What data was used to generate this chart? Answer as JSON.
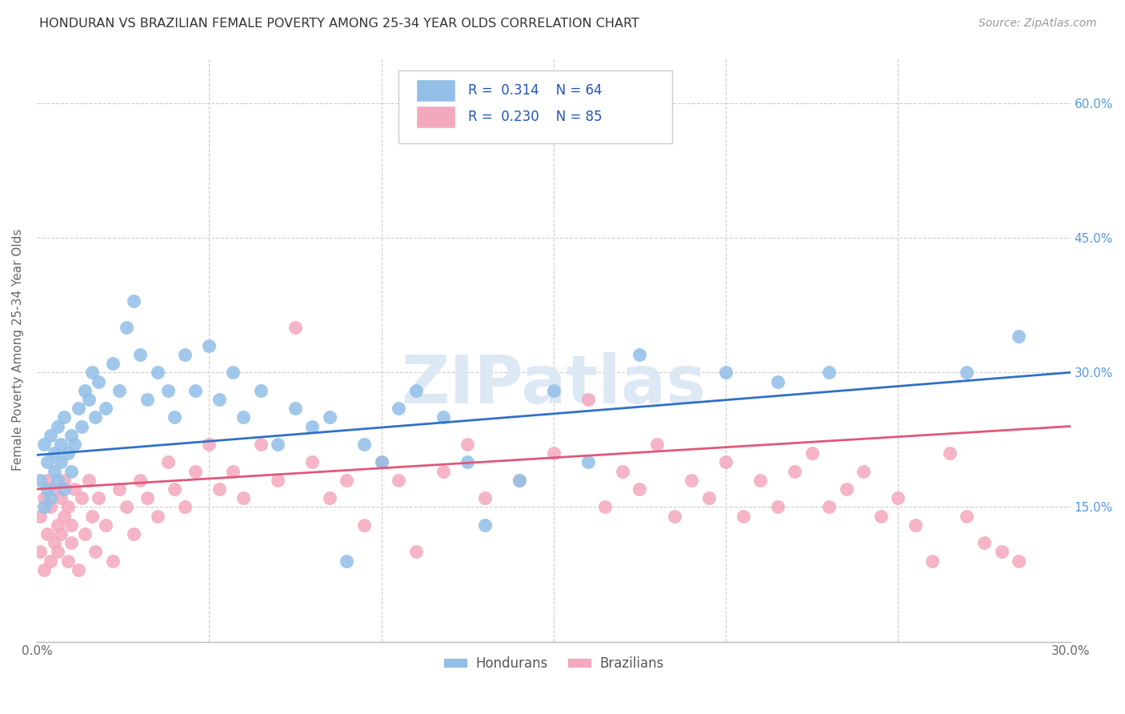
{
  "title": "HONDURAN VS BRAZILIAN FEMALE POVERTY AMONG 25-34 YEAR OLDS CORRELATION CHART",
  "source": "Source: ZipAtlas.com",
  "ylabel": "Female Poverty Among 25-34 Year Olds",
  "xlim": [
    0.0,
    0.3
  ],
  "ylim": [
    0.0,
    0.65
  ],
  "honduran_color": "#91bfe8",
  "brazilian_color": "#f4a8be",
  "honduran_line_color": "#3070c8",
  "brazilian_line_color": "#e05878",
  "r_honduran": 0.314,
  "n_honduran": 64,
  "r_brazilian": 0.23,
  "n_brazilian": 85,
  "legend_text_color": "#2255bb",
  "watermark": "ZIPatlas",
  "background_color": "#ffffff",
  "grid_color": "#cccccc",
  "right_tick_color": "#5599dd",
  "hondurans_x": [
    0.001,
    0.002,
    0.002,
    0.003,
    0.003,
    0.004,
    0.004,
    0.005,
    0.005,
    0.006,
    0.006,
    0.007,
    0.007,
    0.008,
    0.008,
    0.009,
    0.01,
    0.01,
    0.011,
    0.012,
    0.013,
    0.014,
    0.015,
    0.016,
    0.017,
    0.018,
    0.02,
    0.022,
    0.024,
    0.026,
    0.028,
    0.03,
    0.032,
    0.035,
    0.038,
    0.04,
    0.043,
    0.046,
    0.05,
    0.053,
    0.057,
    0.06,
    0.065,
    0.07,
    0.075,
    0.08,
    0.085,
    0.09,
    0.095,
    0.1,
    0.105,
    0.11,
    0.118,
    0.125,
    0.13,
    0.14,
    0.15,
    0.16,
    0.175,
    0.2,
    0.215,
    0.23,
    0.27,
    0.285
  ],
  "hondurans_y": [
    0.18,
    0.22,
    0.15,
    0.2,
    0.17,
    0.23,
    0.16,
    0.21,
    0.19,
    0.24,
    0.18,
    0.22,
    0.2,
    0.25,
    0.17,
    0.21,
    0.19,
    0.23,
    0.22,
    0.26,
    0.24,
    0.28,
    0.27,
    0.3,
    0.25,
    0.29,
    0.26,
    0.31,
    0.28,
    0.35,
    0.38,
    0.32,
    0.27,
    0.3,
    0.28,
    0.25,
    0.32,
    0.28,
    0.33,
    0.27,
    0.3,
    0.25,
    0.28,
    0.22,
    0.26,
    0.24,
    0.25,
    0.09,
    0.22,
    0.2,
    0.26,
    0.28,
    0.25,
    0.2,
    0.13,
    0.18,
    0.28,
    0.2,
    0.32,
    0.3,
    0.29,
    0.3,
    0.3,
    0.34
  ],
  "brazilians_x": [
    0.001,
    0.001,
    0.002,
    0.002,
    0.003,
    0.003,
    0.004,
    0.004,
    0.005,
    0.005,
    0.006,
    0.006,
    0.007,
    0.007,
    0.008,
    0.008,
    0.009,
    0.009,
    0.01,
    0.01,
    0.011,
    0.012,
    0.013,
    0.014,
    0.015,
    0.016,
    0.017,
    0.018,
    0.02,
    0.022,
    0.024,
    0.026,
    0.028,
    0.03,
    0.032,
    0.035,
    0.038,
    0.04,
    0.043,
    0.046,
    0.05,
    0.053,
    0.057,
    0.06,
    0.065,
    0.07,
    0.075,
    0.08,
    0.085,
    0.09,
    0.095,
    0.1,
    0.105,
    0.11,
    0.118,
    0.125,
    0.13,
    0.14,
    0.15,
    0.16,
    0.165,
    0.17,
    0.175,
    0.18,
    0.185,
    0.19,
    0.195,
    0.2,
    0.205,
    0.21,
    0.215,
    0.22,
    0.225,
    0.23,
    0.235,
    0.24,
    0.245,
    0.25,
    0.255,
    0.26,
    0.265,
    0.27,
    0.275,
    0.28,
    0.285
  ],
  "brazilians_y": [
    0.1,
    0.14,
    0.08,
    0.16,
    0.12,
    0.18,
    0.09,
    0.15,
    0.11,
    0.17,
    0.13,
    0.1,
    0.16,
    0.12,
    0.14,
    0.18,
    0.09,
    0.15,
    0.13,
    0.11,
    0.17,
    0.08,
    0.16,
    0.12,
    0.18,
    0.14,
    0.1,
    0.16,
    0.13,
    0.09,
    0.17,
    0.15,
    0.12,
    0.18,
    0.16,
    0.14,
    0.2,
    0.17,
    0.15,
    0.19,
    0.22,
    0.17,
    0.19,
    0.16,
    0.22,
    0.18,
    0.35,
    0.2,
    0.16,
    0.18,
    0.13,
    0.2,
    0.18,
    0.1,
    0.19,
    0.22,
    0.16,
    0.18,
    0.21,
    0.27,
    0.15,
    0.19,
    0.17,
    0.22,
    0.14,
    0.18,
    0.16,
    0.2,
    0.14,
    0.18,
    0.15,
    0.19,
    0.21,
    0.15,
    0.17,
    0.19,
    0.14,
    0.16,
    0.13,
    0.09,
    0.21,
    0.14,
    0.11,
    0.1,
    0.09
  ]
}
